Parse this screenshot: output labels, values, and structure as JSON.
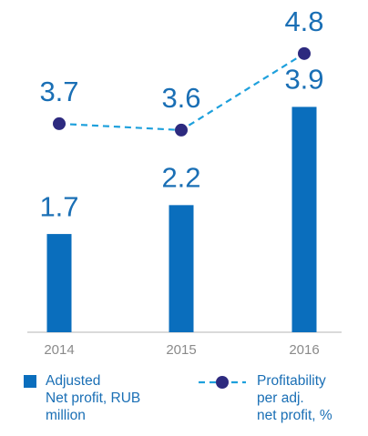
{
  "chart_data": {
    "type": "bar",
    "categories": [
      "2014",
      "2015",
      "2016"
    ],
    "series": [
      {
        "name": "Adjusted\nNet profit, RUB\nmillion",
        "type": "bar",
        "color": "#0a6ebd",
        "values": [
          1.7,
          2.2,
          3.9
        ]
      },
      {
        "name": "Profitability\nper adj.\nnet profit, %",
        "type": "line",
        "axis": "y2",
        "color": "#1ea0dc",
        "marker_color": "#2d2a7f",
        "dashed": true,
        "values": [
          3.7,
          3.6,
          4.8
        ]
      }
    ],
    "ylim": [
      0,
      5.75
    ],
    "y2lim": [
      0.43,
      5.64
    ]
  }
}
